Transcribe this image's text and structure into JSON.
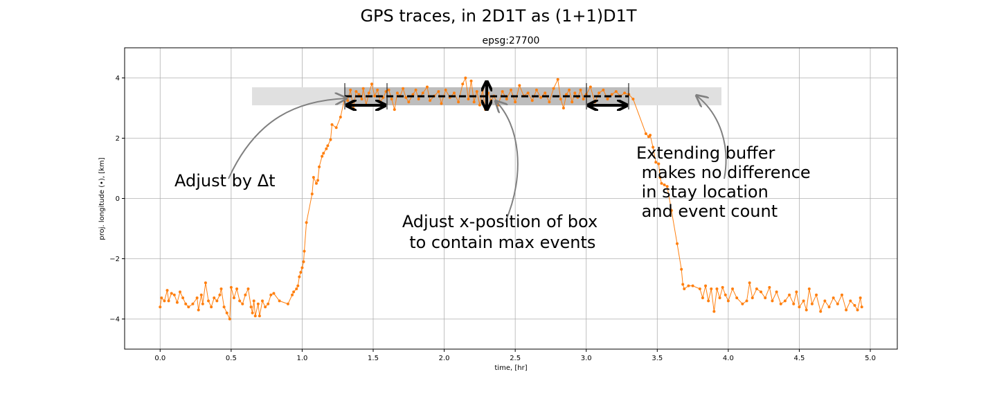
{
  "chart_data": {
    "type": "line",
    "title": "GPS traces, in 2D1T as (1+1)D1T",
    "subtitle": "epsg:27700",
    "x_label": "time, [hr]",
    "y_label": "proj. longitude (•), [km]",
    "xlim": [
      -0.25,
      5.19
    ],
    "ylim": [
      -5,
      5
    ],
    "xticks": [
      {
        "value": 0,
        "label": "0.0"
      },
      {
        "value": 0.5,
        "label": "0.5"
      },
      {
        "value": 1,
        "label": "1.0"
      },
      {
        "value": 1.5,
        "label": "1.5"
      },
      {
        "value": 2,
        "label": "2.0"
      },
      {
        "value": 2.5,
        "label": "2.5"
      },
      {
        "value": 3,
        "label": "3.0"
      },
      {
        "value": 3.5,
        "label": "3.5"
      },
      {
        "value": 4,
        "label": "4.0"
      },
      {
        "value": 4.5,
        "label": "4.5"
      },
      {
        "value": 5,
        "label": "5.0"
      }
    ],
    "yticks": [
      {
        "value": -4,
        "label": "−4"
      },
      {
        "value": -2,
        "label": "−2"
      },
      0,
      2,
      4
    ],
    "grid": true,
    "series": [
      {
        "color": "#ff7f0e",
        "x": [
          0.0,
          0.01,
          0.03,
          0.05,
          0.06,
          0.08,
          0.1,
          0.12,
          0.14,
          0.16,
          0.18,
          0.2,
          0.23,
          0.26,
          0.27,
          0.29,
          0.3,
          0.32,
          0.34,
          0.36,
          0.38,
          0.4,
          0.42,
          0.43,
          0.45,
          0.47,
          0.49,
          0.5,
          0.52,
          0.54,
          0.56,
          0.58,
          0.6,
          0.62,
          0.64,
          0.65,
          0.66,
          0.67,
          0.69,
          0.7,
          0.72,
          0.74,
          0.76,
          0.78,
          0.8,
          0.84,
          0.9,
          0.93,
          0.94,
          0.96,
          0.97,
          0.98,
          0.99,
          1.0,
          1.01,
          1.015,
          1.03,
          1.07,
          1.08,
          1.1,
          1.11,
          1.12,
          1.14,
          1.15,
          1.17,
          1.18,
          1.2,
          1.21,
          1.24,
          1.27,
          1.3,
          1.32,
          1.34,
          1.36,
          1.38,
          1.4,
          1.42,
          1.43,
          1.45,
          1.47,
          1.49,
          1.51,
          1.53,
          1.55,
          1.57,
          1.59,
          1.61,
          1.63,
          1.65,
          1.67,
          1.69,
          1.71,
          1.73,
          1.75,
          1.78,
          1.8,
          1.82,
          1.85,
          1.88,
          1.9,
          1.93,
          1.96,
          1.98,
          2.01,
          2.04,
          2.07,
          2.1,
          2.13,
          2.15,
          2.17,
          2.19,
          2.21,
          2.23,
          2.25,
          2.27,
          2.29,
          2.31,
          2.33,
          2.35,
          2.38,
          2.41,
          2.44,
          2.47,
          2.5,
          2.53,
          2.56,
          2.59,
          2.62,
          2.65,
          2.68,
          2.71,
          2.74,
          2.77,
          2.8,
          2.82,
          2.84,
          2.86,
          2.88,
          2.9,
          2.92,
          2.94,
          2.96,
          2.98,
          3.0,
          3.03,
          3.06,
          3.09,
          3.12,
          3.15,
          3.18,
          3.21,
          3.24,
          3.27,
          3.3,
          3.33,
          3.42,
          3.44,
          3.45,
          3.47,
          3.49,
          3.51,
          3.52,
          3.53,
          3.55,
          3.57,
          3.6,
          3.64,
          3.67,
          3.68,
          3.69,
          3.72,
          3.75,
          3.8,
          3.82,
          3.84,
          3.86,
          3.88,
          3.9,
          3.92,
          3.94,
          3.96,
          3.98,
          4.0,
          4.03,
          4.06,
          4.1,
          4.13,
          4.15,
          4.17,
          4.2,
          4.23,
          4.26,
          4.29,
          4.31,
          4.34,
          4.37,
          4.4,
          4.43,
          4.46,
          4.48,
          4.5,
          4.53,
          4.55,
          4.57,
          4.59,
          4.62,
          4.65,
          4.68,
          4.71,
          4.74,
          4.77,
          4.8,
          4.83,
          4.86,
          4.89,
          4.91,
          4.93,
          4.94
        ],
        "values": [
          -3.6,
          -3.3,
          -3.4,
          -3.05,
          -3.4,
          -3.15,
          -3.2,
          -3.45,
          -3.1,
          -3.3,
          -3.5,
          -3.6,
          -3.5,
          -3.3,
          -3.7,
          -3.2,
          -3.5,
          -2.8,
          -3.4,
          -3.6,
          -3.3,
          -3.4,
          -3.2,
          -3.0,
          -3.6,
          -3.8,
          -4.0,
          -2.95,
          -3.3,
          -3.0,
          -3.4,
          -3.5,
          -3.2,
          -3.0,
          -3.6,
          -3.8,
          -3.4,
          -3.9,
          -3.5,
          -3.9,
          -3.4,
          -3.6,
          -3.5,
          -3.2,
          -3.15,
          -3.4,
          -3.5,
          -3.2,
          -3.1,
          -3.0,
          -2.9,
          -2.6,
          -2.45,
          -2.3,
          -2.1,
          -1.75,
          -0.8,
          0.15,
          0.7,
          0.5,
          0.6,
          1.05,
          1.4,
          1.5,
          1.65,
          1.75,
          1.95,
          2.45,
          2.35,
          2.7,
          3.35,
          3.25,
          3.6,
          3.0,
          3.55,
          3.45,
          3.3,
          3.65,
          3.1,
          3.5,
          3.8,
          3.4,
          3.6,
          3.2,
          3.35,
          3.55,
          3.6,
          3.3,
          2.95,
          3.5,
          3.4,
          3.65,
          3.35,
          3.2,
          3.45,
          3.6,
          3.3,
          3.5,
          3.7,
          3.25,
          3.4,
          3.55,
          3.15,
          3.6,
          3.35,
          3.5,
          3.2,
          3.8,
          4.0,
          3.3,
          3.9,
          3.2,
          3.55,
          3.1,
          3.6,
          2.95,
          3.5,
          3.25,
          3.4,
          3.1,
          3.55,
          3.3,
          3.6,
          3.2,
          3.75,
          3.4,
          3.5,
          3.25,
          3.6,
          3.35,
          3.5,
          3.2,
          3.65,
          3.95,
          3.3,
          3.0,
          3.45,
          3.6,
          3.2,
          3.5,
          3.35,
          3.6,
          3.3,
          3.45,
          3.7,
          3.2,
          3.5,
          3.6,
          3.3,
          3.45,
          3.55,
          3.4,
          3.5,
          3.45,
          3.3,
          2.15,
          2.05,
          2.1,
          1.7,
          1.2,
          1.15,
          0.7,
          0.5,
          0.45,
          0.4,
          -0.4,
          -1.5,
          -2.35,
          -2.85,
          -3.0,
          -2.9,
          -2.9,
          -3.0,
          -3.3,
          -2.9,
          -3.4,
          -3.0,
          -3.75,
          -3.0,
          -3.3,
          -2.95,
          -3.2,
          -3.4,
          -3.0,
          -3.3,
          -3.5,
          -3.4,
          -2.8,
          -3.3,
          -3.0,
          -3.1,
          -3.3,
          -2.95,
          -3.4,
          -3.1,
          -3.5,
          -3.4,
          -3.2,
          -3.5,
          -3.1,
          -3.6,
          -3.4,
          -3.7,
          -3.0,
          -3.5,
          -3.2,
          -3.75,
          -3.4,
          -3.6,
          -3.3,
          -3.5,
          -3.2,
          -3.7,
          -3.4,
          -3.55,
          -3.7,
          -3.3,
          -3.6
        ]
      }
    ],
    "annotations": [
      {
        "lines": [
          "Adjust by Δt"
        ]
      },
      {
        "lines": [
          "Adjust x-position of box",
          " to contain max events"
        ]
      },
      {
        "lines": [
          "Extending buffer",
          " makes no difference",
          " in stay location",
          " and event count"
        ]
      }
    ]
  }
}
